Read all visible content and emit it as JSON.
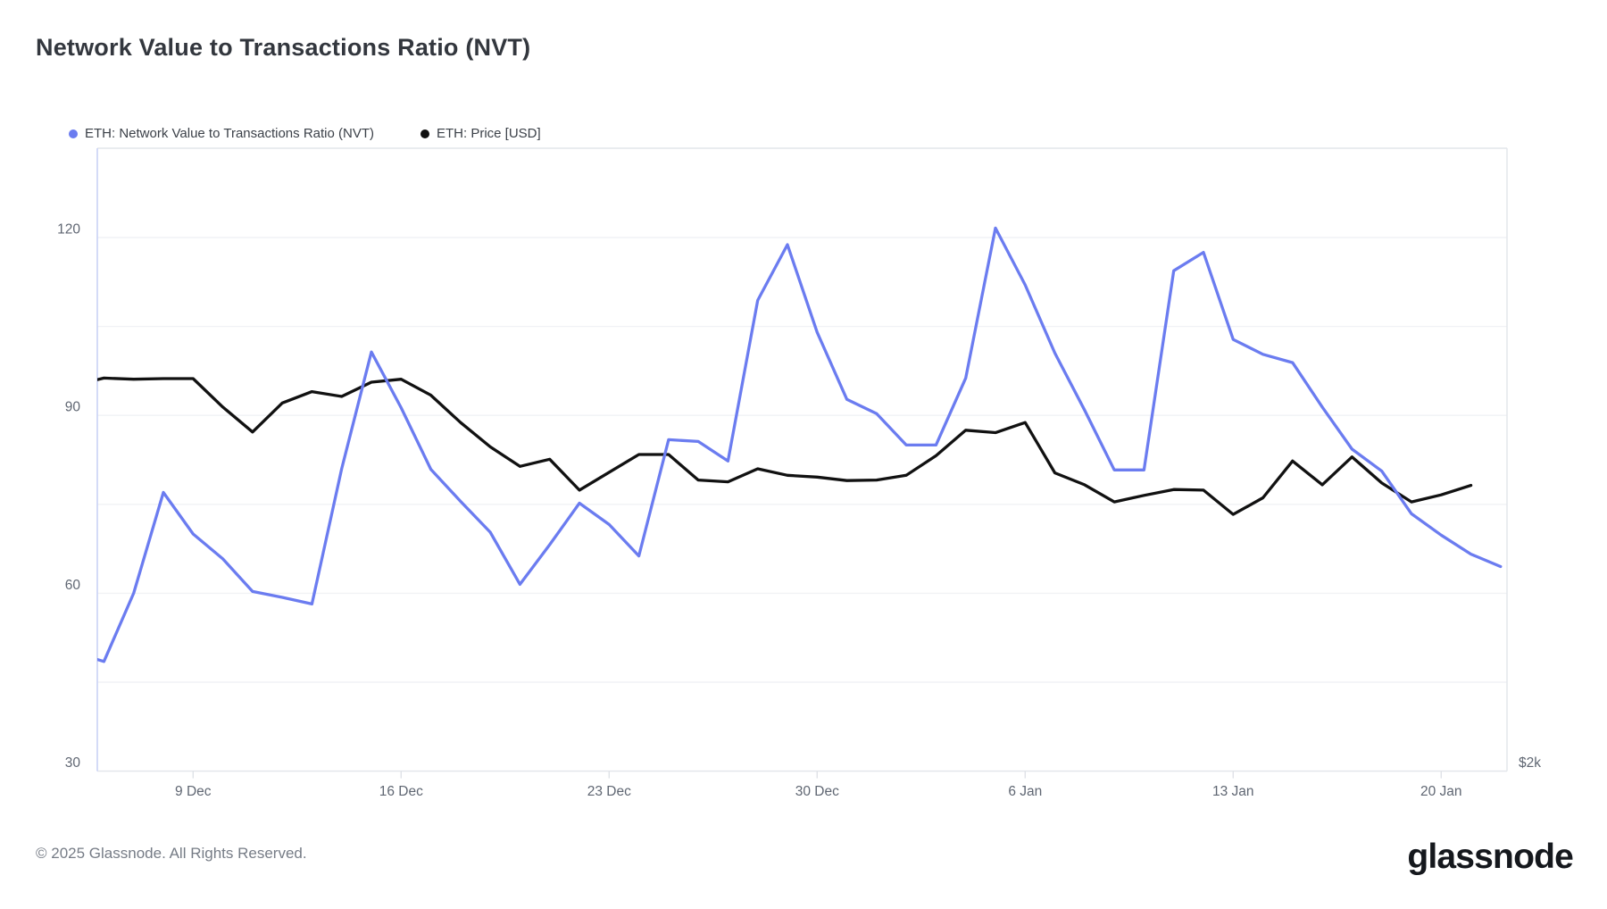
{
  "title": "Network Value to Transactions Ratio (NVT)",
  "legend": [
    {
      "label": "ETH: Network Value to Transactions Ratio (NVT)",
      "color": "#6b7cf0"
    },
    {
      "label": "ETH: Price [USD]",
      "color": "#111111"
    }
  ],
  "footer": {
    "copyright": "© 2025 Glassnode. All Rights Reserved.",
    "brand": "glassnode"
  },
  "chart_data": {
    "type": "line",
    "title": "Network Value to Transactions Ratio (NVT)",
    "x": [
      "5 Dec",
      "6 Dec",
      "7 Dec",
      "8 Dec",
      "9 Dec",
      "10 Dec",
      "11 Dec",
      "12 Dec",
      "13 Dec",
      "14 Dec",
      "15 Dec",
      "16 Dec",
      "17 Dec",
      "18 Dec",
      "19 Dec",
      "20 Dec",
      "21 Dec",
      "22 Dec",
      "23 Dec",
      "24 Dec",
      "25 Dec",
      "26 Dec",
      "27 Dec",
      "28 Dec",
      "29 Dec",
      "30 Dec",
      "31 Dec",
      "1 Jan",
      "2 Jan",
      "3 Jan",
      "4 Jan",
      "5 Jan",
      "6 Jan",
      "7 Jan",
      "8 Jan",
      "9 Jan",
      "10 Jan",
      "11 Jan",
      "12 Jan",
      "13 Jan",
      "14 Jan",
      "15 Jan",
      "16 Jan",
      "17 Jan",
      "18 Jan",
      "19 Jan",
      "20 Jan",
      "21 Jan",
      "22 Jan"
    ],
    "series": [
      {
        "name": "ETH: Price [USD]",
        "color": "#111111",
        "note": "plotted against hidden right price axis; only the $2k tick is visible. Values below are in left-axis equivalent units as drawn.",
        "values": [
          95.1,
          96.3,
          96.1,
          96.2,
          96.2,
          91.4,
          87.2,
          92.1,
          94.0,
          93.2,
          95.6,
          96.1,
          93.4,
          88.8,
          84.7,
          81.4,
          82.6,
          77.4,
          80.4,
          83.4,
          83.4,
          79.1,
          78.8,
          81.0,
          79.9,
          79.6,
          79.0,
          79.1,
          79.9,
          83.2,
          87.5,
          87.1,
          88.8,
          80.3,
          78.3,
          75.4,
          76.5,
          77.5,
          77.4,
          73.3,
          76.1,
          82.3,
          78.3,
          83.0,
          78.6,
          75.4,
          76.6,
          78.2,
          null
        ]
      },
      {
        "name": "ETH: Network Value to Transactions Ratio (NVT)",
        "color": "#6b7cf0",
        "values": [
          50.0,
          48.5,
          60.0,
          77.0,
          70.0,
          65.8,
          60.3,
          59.3,
          58.2,
          81.0,
          100.7,
          91.3,
          80.9,
          75.5,
          70.3,
          61.5,
          68.2,
          75.2,
          71.6,
          66.3,
          85.9,
          85.6,
          82.3,
          109.4,
          118.8,
          104.0,
          92.7,
          90.3,
          85.0,
          85.0,
          96.3,
          121.6,
          112.0,
          100.5,
          90.9,
          80.8,
          80.8,
          114.4,
          117.5,
          102.8,
          100.3,
          98.9,
          91.4,
          84.3,
          80.6,
          73.4,
          69.8,
          66.6,
          64.5
        ]
      }
    ],
    "xlabel": "",
    "ylabel": "",
    "x_ticks": [
      {
        "index": 4,
        "label": "9 Dec"
      },
      {
        "index": 11,
        "label": "16 Dec"
      },
      {
        "index": 18,
        "label": "23 Dec"
      },
      {
        "index": 25,
        "label": "30 Dec"
      },
      {
        "index": 32,
        "label": "6 Jan"
      },
      {
        "index": 39,
        "label": "13 Jan"
      },
      {
        "index": 46,
        "label": "20 Jan"
      }
    ],
    "y_axis": {
      "ticks": [
        30,
        60,
        90,
        120
      ],
      "grid_values": [
        45,
        60,
        75,
        90,
        105,
        120
      ],
      "range": [
        30,
        135
      ],
      "grid": true
    },
    "right_axis": {
      "ticks": [
        "$2k"
      ]
    },
    "legend_position": "top-left",
    "colors": {
      "grid": "#f1f2f5",
      "plot_border": "#e2e5ea",
      "left_axis_line": "#c9d2f5",
      "axis_text": "#5f6672",
      "tick_mark": "#dfe2e7"
    }
  }
}
